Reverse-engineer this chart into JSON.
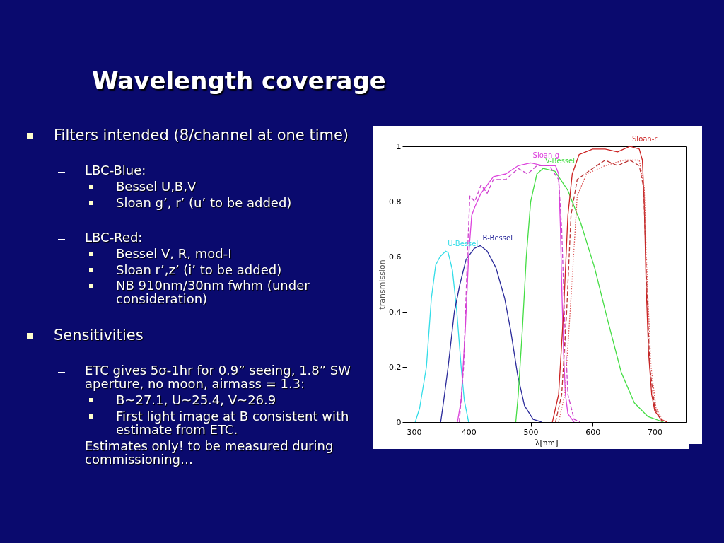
{
  "chart_data": {
    "type": "line",
    "title": "Wavelength coverage",
    "xlabel": "λ[nm]",
    "ylabel": "transmission",
    "xlim": [
      300,
      750
    ],
    "xticks": [
      300,
      400,
      500,
      600,
      700
    ],
    "ylim": [
      0,
      1
    ],
    "yticks": [
      0,
      0.2,
      0.4,
      0.6,
      0.8,
      1
    ],
    "grid": false,
    "legend": false,
    "line_style": "solid",
    "annotations": [
      "Filters intended (8/channel at one time)",
      "LBC-Blue:",
      "Bessel U,B,V",
      "Sloan g’, r’ (u’ to be added)",
      "LBC-Red:",
      "Bessel V, R, mod-I",
      "Sloan r’,z’ (i’ to be added)",
      "NB 910nm/30nm fwhm (under consideration)",
      "Sensitivities",
      "ETC gives 5σ-1hr for 0.9” seeing, 1.8” SW aperture, no moon, airmass = 1.3:",
      "B~27.1, U~25.4, V~26.9",
      "First light image at B consistent with estimate from ETC.",
      "Estimates only! to be measured during commissioning…"
    ],
    "series": [
      {
        "name": "U-Bessel",
        "color": "#33dde8",
        "x": [
          314,
          321,
          332,
          340,
          347,
          354,
          363,
          367,
          374,
          381,
          388,
          393,
          400
        ],
        "values": [
          0,
          0.05,
          0.2,
          0.45,
          0.57,
          0.6,
          0.62,
          0.615,
          0.55,
          0.4,
          0.2,
          0.08,
          0
        ]
      },
      {
        "name": "B-Bessel",
        "color": "#2a2a9a",
        "x": [
          355,
          360,
          367,
          377,
          386,
          396,
          409,
          419,
          430,
          444,
          458,
          468,
          479,
          490,
          504,
          518
        ],
        "values": [
          0,
          0.08,
          0.2,
          0.4,
          0.5,
          0.59,
          0.63,
          0.64,
          0.62,
          0.56,
          0.45,
          0.33,
          0.17,
          0.06,
          0.01,
          0
        ]
      },
      {
        "name": "V-Bessel",
        "color": "#44dd44",
        "x": [
          476,
          480,
          487,
          493,
          500,
          510,
          520,
          539,
          560,
          581,
          603,
          624,
          646,
          667,
          689,
          714
        ],
        "values": [
          0,
          0.1,
          0.35,
          0.6,
          0.8,
          0.9,
          0.92,
          0.91,
          0.84,
          0.72,
          0.56,
          0.37,
          0.18,
          0.07,
          0.02,
          0
        ]
      },
      {
        "name": "Sloan-g",
        "color": "#dd44dd",
        "line_style": "solid",
        "x": [
          382,
          388,
          395,
          400,
          405,
          410,
          420,
          430,
          440,
          460,
          480,
          500,
          520,
          540,
          545,
          548,
          550,
          553,
          556,
          560,
          570
        ],
        "values": [
          0,
          0.08,
          0.35,
          0.6,
          0.75,
          0.78,
          0.83,
          0.86,
          0.89,
          0.9,
          0.93,
          0.94,
          0.93,
          0.93,
          0.9,
          0.7,
          0.5,
          0.25,
          0.1,
          0.03,
          0
        ]
      },
      {
        "color": "#cc44cc",
        "line_style": "dashed",
        "x": [
          385,
          392,
          398,
          402,
          410,
          420,
          430,
          440,
          460,
          480,
          495,
          510,
          530,
          545,
          550,
          555,
          560,
          570,
          580
        ],
        "values": [
          0,
          0.2,
          0.6,
          0.82,
          0.8,
          0.86,
          0.83,
          0.88,
          0.88,
          0.92,
          0.9,
          0.93,
          0.93,
          0.88,
          0.7,
          0.35,
          0.1,
          0.01,
          0
        ]
      },
      {
        "name": "Sloan-r",
        "color": "#cc2222",
        "line_style": "solid",
        "x": [
          535,
          545,
          553,
          560,
          567,
          578,
          600,
          620,
          640,
          660,
          675,
          680,
          683,
          686,
          690,
          695,
          700,
          710,
          720
        ],
        "values": [
          0,
          0.1,
          0.4,
          0.75,
          0.9,
          0.97,
          0.99,
          0.99,
          0.98,
          1.0,
          0.99,
          0.95,
          0.8,
          0.5,
          0.25,
          0.1,
          0.04,
          0.01,
          0
        ]
      },
      {
        "color": "#bb3333",
        "line_style": "dashed",
        "x": [
          540,
          550,
          558,
          565,
          575,
          600,
          620,
          640,
          660,
          675,
          682,
          687,
          692,
          700,
          712
        ],
        "values": [
          0,
          0.1,
          0.4,
          0.75,
          0.88,
          0.92,
          0.95,
          0.93,
          0.95,
          0.93,
          0.85,
          0.5,
          0.2,
          0.05,
          0
        ]
      },
      {
        "color": "#dd5555",
        "line_style": "dotted",
        "x": [
          545,
          555,
          565,
          575,
          590,
          620,
          650,
          675,
          683,
          688,
          694,
          702,
          715
        ],
        "values": [
          0,
          0.1,
          0.45,
          0.82,
          0.9,
          0.93,
          0.95,
          0.95,
          0.85,
          0.5,
          0.2,
          0.05,
          0
        ]
      }
    ]
  }
}
